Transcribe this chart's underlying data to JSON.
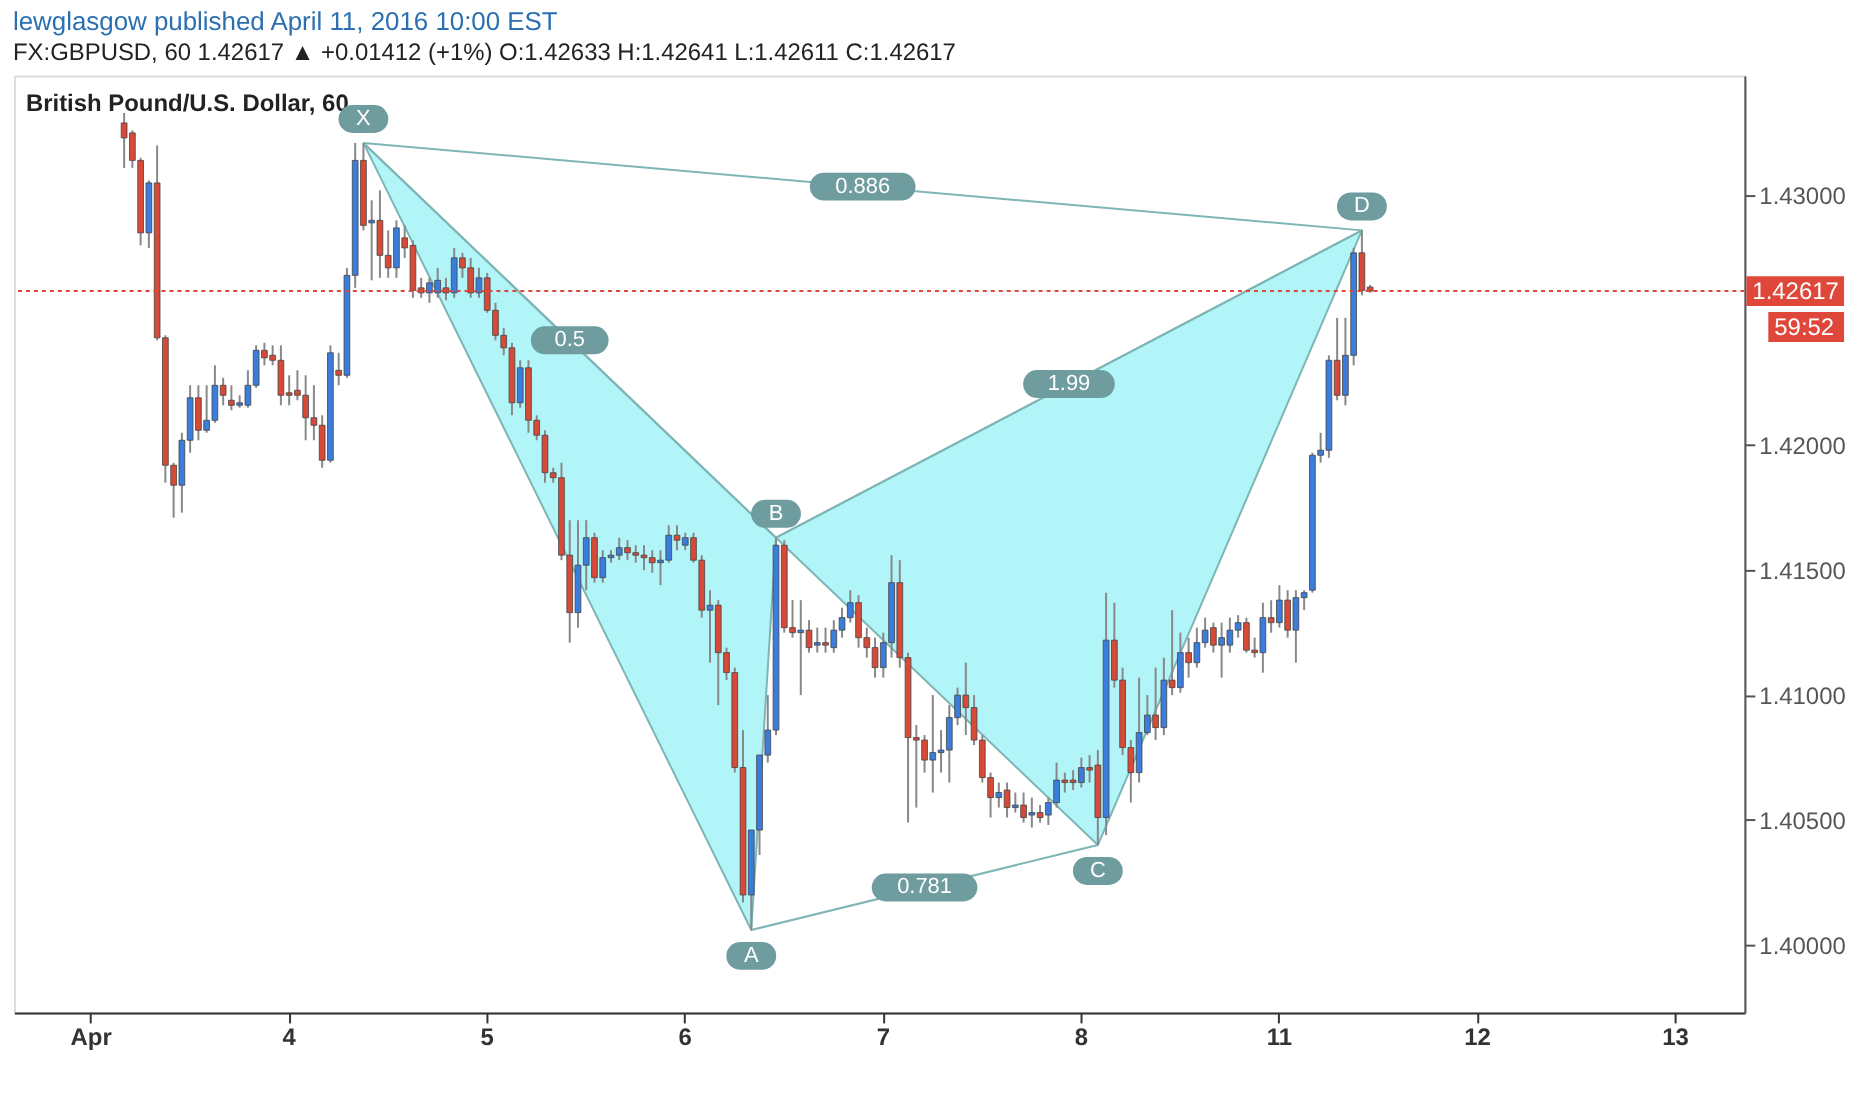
{
  "chart_data": {
    "type": "candlestick",
    "title": "lewglasgow published April 11, 2016 10:00 EST",
    "subtitle": "FX:GBPUSD, 60 1.42617 ▲ +0.01412 (+1%) O:1.42633 H:1.42641 L:1.42611 C:1.42617",
    "categories": [
      null,
      null,
      null,
      null,
      null,
      null,
      null,
      null,
      null,
      "Apr",
      null,
      null,
      null,
      null,
      null,
      null,
      null,
      null,
      null,
      null,
      null,
      null,
      null,
      null,
      null,
      null,
      null,
      null,
      null,
      null,
      null,
      null,
      null,
      "4",
      null,
      null,
      null,
      null,
      null,
      null,
      null,
      null,
      null,
      null,
      null,
      null,
      null,
      null,
      null,
      null,
      null,
      null,
      null,
      null,
      null,
      null,
      null,
      "5",
      null,
      null,
      null,
      null,
      null,
      null,
      null,
      null,
      null,
      null,
      null,
      null,
      null,
      null,
      null,
      null,
      null,
      null,
      null,
      null,
      null,
      null,
      null,
      "6",
      null,
      null,
      null,
      null,
      null,
      null,
      null,
      null,
      null,
      null,
      null,
      null,
      null,
      null,
      null,
      null,
      null,
      null,
      null,
      null,
      null,
      null,
      null,
      "7",
      null,
      null,
      null,
      null,
      null,
      null,
      null,
      null,
      null,
      null,
      null,
      null,
      null,
      null,
      null,
      null,
      null,
      null,
      null,
      null,
      null,
      null,
      null,
      "8",
      null,
      null,
      null,
      null,
      null,
      null,
      null,
      null,
      null,
      null,
      null,
      null,
      null,
      null,
      null,
      null,
      null,
      null,
      null,
      null,
      null,
      null,
      null,
      "11",
      null,
      null,
      null,
      null,
      null,
      null,
      null,
      null,
      null,
      null,
      null,
      null,
      null,
      null,
      null,
      null,
      null,
      null,
      null,
      null,
      null,
      null,
      null,
      "12",
      null,
      null,
      null,
      null,
      null,
      null,
      null,
      null,
      null,
      null,
      null,
      null,
      null,
      null,
      null,
      null,
      null,
      null,
      null,
      null,
      null,
      null,
      null,
      "13",
      null,
      null,
      null,
      null,
      null,
      null,
      null,
      null
    ],
    "ohlc": [
      null,
      null,
      null,
      null,
      null,
      null,
      null,
      null,
      null,
      null,
      null,
      null,
      null,
      [
        1.4329,
        1.4333,
        1.4311,
        1.4323
      ],
      [
        1.4325,
        1.4326,
        1.4311,
        1.4314
      ],
      [
        1.4314,
        1.4315,
        1.428,
        1.4285
      ],
      [
        1.4285,
        1.4306,
        1.4279,
        1.4305
      ],
      [
        1.4305,
        1.432,
        1.4242,
        1.4243
      ],
      [
        1.4243,
        1.4244,
        1.4185,
        1.4192
      ],
      [
        1.4192,
        1.4193,
        1.4171,
        1.4184
      ],
      [
        1.4184,
        1.4205,
        1.4173,
        1.4202
      ],
      [
        1.4202,
        1.4224,
        1.4197,
        1.4219
      ],
      [
        1.4219,
        1.4224,
        1.4202,
        1.4206
      ],
      [
        1.4206,
        1.4224,
        1.4205,
        1.421
      ],
      [
        1.421,
        1.4232,
        1.4209,
        1.4224
      ],
      [
        1.4224,
        1.4227,
        1.4216,
        1.422
      ],
      [
        1.4218,
        1.4224,
        1.4214,
        1.4216
      ],
      [
        1.4216,
        1.422,
        1.4215,
        1.4217
      ],
      [
        1.4216,
        1.423,
        1.4215,
        1.4224
      ],
      [
        1.4224,
        1.424,
        1.4223,
        1.4238
      ],
      [
        1.4238,
        1.4241,
        1.4232,
        1.4235
      ],
      [
        1.4236,
        1.424,
        1.4232,
        1.4234
      ],
      [
        1.4234,
        1.424,
        1.4216,
        1.422
      ],
      [
        1.4221,
        1.4228,
        1.4216,
        1.422
      ],
      [
        1.4222,
        1.423,
        1.4218,
        1.422
      ],
      [
        1.422,
        1.4228,
        1.4202,
        1.4211
      ],
      [
        1.4211,
        1.4224,
        1.4202,
        1.4208
      ],
      [
        1.4208,
        1.4212,
        1.4191,
        1.4194
      ],
      [
        1.4194,
        1.424,
        1.4193,
        1.4237
      ],
      [
        1.423,
        1.4237,
        1.4224,
        1.4228
      ],
      [
        1.4228,
        1.4271,
        1.4227,
        1.4268
      ],
      [
        1.4268,
        1.4321,
        1.4263,
        1.4314
      ],
      [
        1.4314,
        1.4321,
        1.4286,
        1.4288
      ],
      [
        1.4289,
        1.4298,
        1.4266,
        1.429
      ],
      [
        1.429,
        1.4302,
        1.4267,
        1.4276
      ],
      [
        1.4276,
        1.4286,
        1.4267,
        1.4271
      ],
      [
        1.4271,
        1.429,
        1.4267,
        1.4287
      ],
      [
        1.4283,
        1.4288,
        1.4275,
        1.4279
      ],
      [
        1.428,
        1.4282,
        1.4259,
        1.4262
      ],
      [
        1.4263,
        1.4267,
        1.4259,
        1.4261
      ],
      [
        1.4261,
        1.4267,
        1.4257,
        1.4265
      ],
      [
        1.4261,
        1.4271,
        1.4259,
        1.4266
      ],
      [
        1.4263,
        1.4267,
        1.4258,
        1.4261
      ],
      [
        1.4261,
        1.4279,
        1.4259,
        1.4275
      ],
      [
        1.4275,
        1.4277,
        1.4267,
        1.4271
      ],
      [
        1.4271,
        1.4275,
        1.4259,
        1.4261
      ],
      [
        1.4261,
        1.4271,
        1.4259,
        1.4267
      ],
      [
        1.4267,
        1.4269,
        1.4253,
        1.4254
      ],
      [
        1.4254,
        1.4257,
        1.4242,
        1.4244
      ],
      [
        1.4244,
        1.4247,
        1.4236,
        1.4239
      ],
      [
        1.4239,
        1.4241,
        1.4212,
        1.4217
      ],
      [
        1.4217,
        1.4234,
        1.4215,
        1.4231
      ],
      [
        1.4231,
        1.4234,
        1.4205,
        1.421
      ],
      [
        1.421,
        1.4212,
        1.4202,
        1.4204
      ],
      [
        1.4204,
        1.4206,
        1.4185,
        1.4189
      ],
      [
        1.4189,
        1.4191,
        1.4185,
        1.4187
      ],
      [
        1.4187,
        1.4193,
        1.4154,
        1.4156
      ],
      [
        1.4156,
        1.417,
        1.4121,
        1.4133
      ],
      [
        1.4133,
        1.417,
        1.4127,
        1.4152
      ],
      [
        1.4152,
        1.417,
        1.4142,
        1.4163
      ],
      [
        1.4163,
        1.4165,
        1.4145,
        1.4147
      ],
      [
        1.4147,
        1.4158,
        1.4145,
        1.4155
      ],
      [
        1.4155,
        1.4158,
        1.4153,
        1.4156
      ],
      [
        1.4156,
        1.4163,
        1.4154,
        1.4159
      ],
      [
        1.4159,
        1.4162,
        1.4154,
        1.4157
      ],
      [
        1.4157,
        1.416,
        1.4153,
        1.4156
      ],
      [
        1.4156,
        1.416,
        1.415,
        1.4155
      ],
      [
        1.4155,
        1.4158,
        1.4149,
        1.4153
      ],
      [
        1.4153,
        1.4158,
        1.4144,
        1.4154
      ],
      [
        1.4154,
        1.4168,
        1.4153,
        1.4164
      ],
      [
        1.4164,
        1.4168,
        1.4158,
        1.4162
      ],
      [
        1.416,
        1.4165,
        1.4158,
        1.4163
      ],
      [
        1.4163,
        1.4165,
        1.4153,
        1.4154
      ],
      [
        1.4154,
        1.4156,
        1.4131,
        1.4134
      ],
      [
        1.4134,
        1.4142,
        1.4113,
        1.4136
      ],
      [
        1.4136,
        1.4138,
        1.4096,
        1.4117
      ],
      [
        1.4117,
        1.4119,
        1.4106,
        1.4109
      ],
      [
        1.4109,
        1.4111,
        1.4069,
        1.4071
      ],
      [
        1.4071,
        1.4086,
        1.4017,
        1.402
      ],
      [
        1.402,
        1.4046,
        1.4006,
        1.4046
      ],
      [
        1.4046,
        1.4076,
        1.4036,
        1.4076
      ],
      [
        1.4076,
        1.41,
        1.4073,
        1.4086
      ],
      [
        1.4086,
        1.4163,
        1.4084,
        1.416
      ],
      [
        1.416,
        1.4162,
        1.4125,
        1.4127
      ],
      [
        1.4127,
        1.4138,
        1.4123,
        1.4125
      ],
      [
        1.4125,
        1.4138,
        1.41,
        1.4126
      ],
      [
        1.4126,
        1.413,
        1.4117,
        1.4119
      ],
      [
        1.412,
        1.4127,
        1.4117,
        1.4121
      ],
      [
        1.4121,
        1.4127,
        1.4117,
        1.412
      ],
      [
        1.4119,
        1.413,
        1.4117,
        1.4126
      ],
      [
        1.4126,
        1.4135,
        1.4123,
        1.4131
      ],
      [
        1.4131,
        1.4142,
        1.4129,
        1.4137
      ],
      [
        1.4137,
        1.414,
        1.4119,
        1.4123
      ],
      [
        1.4123,
        1.4127,
        1.4115,
        1.4119
      ],
      [
        1.4119,
        1.4123,
        1.4107,
        1.4111
      ],
      [
        1.4111,
        1.4125,
        1.4107,
        1.4121
      ],
      [
        1.4121,
        1.4156,
        1.4115,
        1.4145
      ],
      [
        1.4145,
        1.4154,
        1.4111,
        1.4115
      ],
      [
        1.4115,
        1.4117,
        1.4049,
        1.4083
      ],
      [
        1.4083,
        1.4088,
        1.4055,
        1.4082
      ],
      [
        1.4082,
        1.4084,
        1.4069,
        1.4074
      ],
      [
        1.4074,
        1.41,
        1.4061,
        1.4077
      ],
      [
        1.4077,
        1.4086,
        1.4069,
        1.4078
      ],
      [
        1.4078,
        1.4096,
        1.4065,
        1.4091
      ],
      [
        1.4091,
        1.4103,
        1.4088,
        1.41
      ],
      [
        1.41,
        1.4113,
        1.4084,
        1.4095
      ],
      [
        1.4095,
        1.41,
        1.408,
        1.4082
      ],
      [
        1.4082,
        1.4084,
        1.4065,
        1.4067
      ],
      [
        1.4067,
        1.4069,
        1.4051,
        1.4059
      ],
      [
        1.4059,
        1.4065,
        1.4055,
        1.4061
      ],
      [
        1.4062,
        1.4065,
        1.4051,
        1.4055
      ],
      [
        1.4055,
        1.4061,
        1.4053,
        1.4056
      ],
      [
        1.4056,
        1.4061,
        1.4049,
        1.4051
      ],
      [
        1.4052,
        1.4059,
        1.4047,
        1.4053
      ],
      [
        1.4053,
        1.4056,
        1.4049,
        1.4051
      ],
      [
        1.4052,
        1.4059,
        1.4048,
        1.4057
      ],
      [
        1.4057,
        1.4073,
        1.4055,
        1.4066
      ],
      [
        1.4066,
        1.4069,
        1.4061,
        1.4065
      ],
      [
        1.4066,
        1.407,
        1.4062,
        1.4065
      ],
      [
        1.4065,
        1.4075,
        1.4063,
        1.4071
      ],
      [
        1.4071,
        1.4076,
        1.4065,
        1.407
      ],
      [
        1.4072,
        1.4078,
        1.404,
        1.4051
      ],
      [
        1.4051,
        1.4141,
        1.4044,
        1.4122
      ],
      [
        1.4122,
        1.4137,
        1.4103,
        1.4106
      ],
      [
        1.4106,
        1.4111,
        1.4076,
        1.4079
      ],
      [
        1.4079,
        1.4082,
        1.4057,
        1.4069
      ],
      [
        1.4069,
        1.4107,
        1.4065,
        1.4085
      ],
      [
        1.4085,
        1.41,
        1.4084,
        1.4092
      ],
      [
        1.4092,
        1.4111,
        1.4082,
        1.4087
      ],
      [
        1.4087,
        1.4115,
        1.4084,
        1.4106
      ],
      [
        1.4106,
        1.4134,
        1.41,
        1.4103
      ],
      [
        1.4103,
        1.4125,
        1.4101,
        1.4117
      ],
      [
        1.4117,
        1.4123,
        1.4107,
        1.4113
      ],
      [
        1.4113,
        1.4127,
        1.4111,
        1.4121
      ],
      [
        1.4121,
        1.4131,
        1.4119,
        1.4126
      ],
      [
        1.4127,
        1.4129,
        1.4117,
        1.412
      ],
      [
        1.412,
        1.4129,
        1.4107,
        1.4123
      ],
      [
        1.412,
        1.4131,
        1.4117,
        1.4126
      ],
      [
        1.4126,
        1.4132,
        1.4123,
        1.4129
      ],
      [
        1.4129,
        1.4131,
        1.4117,
        1.4118
      ],
      [
        1.4118,
        1.4123,
        1.4115,
        1.4117
      ],
      [
        1.4117,
        1.4137,
        1.4109,
        1.4131
      ],
      [
        1.4131,
        1.4138,
        1.4125,
        1.4129
      ],
      [
        1.4129,
        1.4144,
        1.4127,
        1.4138
      ],
      [
        1.4138,
        1.4142,
        1.4123,
        1.4126
      ],
      [
        1.4126,
        1.4142,
        1.4113,
        1.4139
      ],
      [
        1.4139,
        1.4142,
        1.4134,
        1.4141
      ],
      [
        1.4142,
        1.4197,
        1.4141,
        1.4196
      ],
      [
        1.4196,
        1.4205,
        1.4193,
        1.4198
      ],
      [
        1.4198,
        1.4236,
        1.4195,
        1.4234
      ],
      [
        1.4234,
        1.4251,
        1.4218,
        1.422
      ],
      [
        1.422,
        1.4251,
        1.4216,
        1.4236
      ],
      [
        1.4236,
        1.4279,
        1.4232,
        1.4277
      ],
      [
        1.4277,
        1.4286,
        1.426,
        1.4262
      ],
      [
        1.42633,
        1.42641,
        1.42611,
        1.42617
      ],
      null,
      null,
      null,
      null,
      null,
      null,
      null,
      null,
      null,
      null,
      null,
      null,
      null,
      null,
      null,
      null,
      null,
      null,
      null,
      null,
      null,
      null,
      null,
      null,
      null,
      null,
      null,
      null,
      null,
      null,
      null,
      null,
      null,
      null,
      null,
      null,
      null,
      null,
      null,
      null,
      null,
      null,
      null,
      null,
      null
    ],
    "colors": [
      null,
      null,
      null,
      null,
      null,
      null,
      null,
      null,
      null,
      null,
      null,
      null,
      null,
      "#d84a38",
      "#d84a38",
      "#d84a38",
      "#3b7ddd",
      "#d84a38",
      "#d84a38",
      "#d84a38",
      "#3b7ddd",
      "#3b7ddd",
      "#d84a38",
      "#3b7ddd",
      "#3b7ddd",
      "#d84a38",
      "#d84a38",
      "#3b7ddd",
      "#3b7ddd",
      "#3b7ddd",
      "#d84a38",
      "#d84a38",
      "#d84a38",
      "#d84a38",
      "#d84a38",
      "#d84a38",
      "#d84a38",
      "#d84a38",
      "#3b7ddd",
      "#d84a38",
      "#3b7ddd",
      "#3b7ddd",
      "#d84a38",
      "#3b7ddd",
      "#d84a38",
      "#d84a38",
      "#3b7ddd",
      "#d84a38",
      "#d84a38",
      "#d84a38",
      "#3b7ddd",
      "#3b7ddd",
      "#d84a38",
      "#3b7ddd",
      "#d84a38",
      "#d84a38",
      "#3b7ddd",
      "#d84a38",
      "#d84a38",
      "#d84a38",
      "#d84a38",
      "#3b7ddd",
      "#d84a38",
      "#d84a38",
      "#d84a38",
      "#d84a38",
      "#d84a38",
      "#d84a38",
      "#3b7ddd",
      "#3b7ddd",
      "#d84a38",
      "#3b7ddd",
      "#3b7ddd",
      "#3b7ddd",
      "#d84a38",
      "#d84a38",
      "#d84a38",
      "#d84a38",
      "#3b7ddd",
      "#3b7ddd",
      "#d84a38",
      "#3b7ddd",
      "#d84a38",
      "#d84a38",
      "#3b7ddd",
      "#d84a38",
      "#d84a38",
      "#d84a38",
      "#d84a38",
      "#3b7ddd",
      "#3b7ddd",
      "#3b7ddd",
      "#3b7ddd",
      "#d84a38",
      "#d84a38",
      "#3b7ddd",
      "#d84a38",
      "#3b7ddd",
      "#d84a38",
      "#3b7ddd",
      "#3b7ddd",
      "#3b7ddd",
      "#d84a38",
      "#d84a38",
      "#d84a38",
      "#3b7ddd",
      "#3b7ddd",
      "#d84a38",
      "#d84a38",
      "#d84a38",
      "#d84a38",
      "#3b7ddd",
      "#3b7ddd",
      "#3b7ddd",
      "#3b7ddd",
      "#d84a38",
      "#d84a38",
      "#d84a38",
      "#d84a38",
      "#3b7ddd",
      "#d84a38",
      "#3b7ddd",
      "#d84a38",
      "#3b7ddd",
      "#d84a38",
      "#3b7ddd",
      "#3b7ddd",
      "#d84a38",
      "#d84a38",
      "#3b7ddd",
      "#d84a38",
      "#d84a38",
      "#3b7ddd",
      "#d84a38",
      "#d84a38",
      "#d84a38",
      "#3b7ddd",
      "#3b7ddd",
      "#d84a38",
      "#3b7ddd",
      "#d84a38",
      "#3b7ddd",
      "#d84a38",
      "#3b7ddd",
      "#3b7ddd",
      "#d84a38",
      "#3b7ddd",
      "#3b7ddd",
      "#3b7ddd",
      "#d84a38",
      "#d84a38",
      "#3b7ddd",
      "#d84a38",
      "#3b7ddd",
      "#d84a38",
      "#3b7ddd",
      "#3b7ddd",
      "#3b7ddd",
      "#3b7ddd",
      "#3b7ddd",
      "#d84a38",
      "#3b7ddd",
      "#3b7ddd",
      "#d84a38",
      "#d84a38",
      null,
      null,
      null,
      null,
      null,
      null,
      null,
      null,
      null,
      null,
      null,
      null,
      null,
      null,
      null,
      null,
      null,
      null,
      null,
      null,
      null,
      null,
      null,
      null,
      null,
      null,
      null,
      null,
      null,
      null,
      null,
      null,
      null,
      null,
      null,
      null,
      null,
      null,
      null,
      null,
      null,
      null,
      null,
      null,
      null
    ],
    "series": [
      {
        "type": "line",
        "color": "#7fb5b5",
        "values": [
          null,
          null,
          null,
          null,
          null,
          null,
          null,
          null,
          null,
          null,
          null,
          null,
          null,
          null,
          null,
          null,
          null,
          null,
          null,
          null,
          null,
          null,
          null,
          null,
          null,
          null,
          null,
          null,
          null,
          null,
          null,
          null,
          null,
          null,
          null,
          null,
          null,
          null,
          null,
          null,
          null,
          null,
          1.4321,
          null,
          null,
          null,
          null,
          null,
          null,
          null,
          null,
          null,
          null,
          null,
          null,
          null,
          null,
          null,
          null,
          null,
          null,
          null,
          null,
          null,
          null,
          null,
          null,
          null,
          null,
          null,
          null,
          null,
          null,
          null,
          null,
          null,
          null,
          null,
          null,
          null,
          null,
          null,
          null,
          null,
          null,
          null,
          null,
          null,
          null,
          1.4006,
          null,
          null,
          1.4163,
          null,
          null,
          null,
          null,
          null,
          null,
          null,
          null,
          null,
          null,
          null,
          null,
          null,
          null,
          null,
          null,
          null,
          null,
          null,
          null,
          null,
          null,
          null,
          null,
          null,
          null,
          null,
          null,
          null,
          null,
          null,
          null,
          null,
          null,
          null,
          null,
          null,
          null,
          1.404,
          null,
          null,
          null,
          null,
          null,
          null,
          null,
          null,
          null,
          null,
          null,
          null,
          null,
          null,
          null,
          null,
          null,
          null,
          null,
          null,
          null,
          null,
          null,
          null,
          null,
          null,
          null,
          null,
          null,
          null,
          null,
          1.4286,
          null,
          null,
          null,
          null,
          null,
          null,
          null,
          null,
          null,
          null,
          null,
          null,
          null,
          null,
          null,
          null,
          null,
          null,
          null,
          null,
          null,
          null,
          null,
          null,
          null,
          null,
          null,
          null,
          null,
          null,
          null,
          null,
          null,
          null,
          null,
          null,
          null,
          null,
          null,
          null,
          null,
          null,
          null,
          null,
          null,
          null
        ]
      }
    ],
    "ylim": [
      1.3973,
      1.4348
    ],
    "yticks": [
      {
        "value": 1.4,
        "label": "1.40000"
      },
      {
        "value": 1.405,
        "label": "1.40500"
      },
      {
        "value": 1.41,
        "label": "1.41000"
      },
      {
        "value": 1.415,
        "label": "1.41500"
      },
      {
        "value": 1.42,
        "label": "1.42000"
      },
      {
        "value": 1.43,
        "label": "1.43000"
      }
    ],
    "ref_lines": [
      {
        "axis": "y",
        "value": 1.42617,
        "label": "1.42617",
        "color": "#e0473b",
        "line_style": "dotted"
      }
    ],
    "annotations": [
      "British Pound/U.S. Dollar, 60",
      "59:52",
      "X",
      "A",
      "B",
      "C",
      "D",
      "0.5",
      "0.781",
      "1.99",
      "0.886"
    ]
  }
}
